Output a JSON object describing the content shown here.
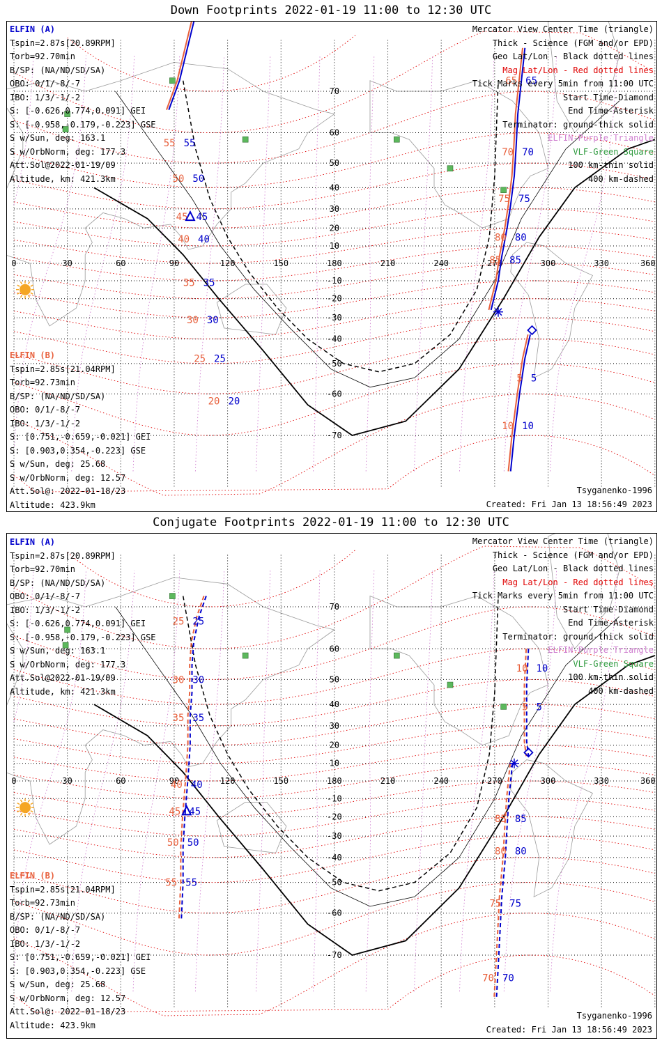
{
  "panels": [
    {
      "id": "down",
      "title": "Down Footprints 2022-01-19 11:00 to 12:30 UTC",
      "elfin_a": {
        "header": "ELFIN (A)",
        "lines": [
          "Tspin=2.87s[20.89RPM]",
          "Torb=92.70min",
          "B/SP: (NA/ND/SD/SA)",
          "OBO: 0/1/-8/-7",
          "IBO: 1/3/-1/-2",
          "S: [-0.626,0.774,0.091] GEI",
          "S: [-0.958,-0.179,-0.223] GSE",
          "S w/Sun, deg: 163.1",
          "S w/OrbNorm, deg: 177.3",
          "Att.Sol@2022-01-19/09",
          "Altitude, km: 421.3km"
        ]
      },
      "elfin_b": {
        "header": "ELFIN (B)",
        "lines": [
          "Tspin=2.85s[21.04RPM]",
          "Torb=92.73min",
          "B/SP: (NA/ND/SD/SA)",
          "OBO: 0/1/-8/-7",
          "IBO: 1/3/-1/-2",
          "S: [0.751,-0.659,-0.021] GEI",
          "S: [0.903,0.354,-0.223] GSE",
          "S w/Sun, deg: 25.68",
          "S w/OrbNorm, deg: 12.57",
          "Att.Sol@: 2022-01-18/23",
          "Altitude: 423.9km"
        ]
      },
      "trace_a": [
        [
          66,
          87
        ],
        [
          72,
          93
        ],
        [
          80,
          101
        ],
        [
          86,
          108
        ],
        [
          90,
          113
        ],
        [
          96,
          120
        ],
        [
          102,
          127
        ],
        [
          105,
          132
        ],
        [
          109,
          138
        ],
        [
          112,
          143
        ]
      ],
      "trace_b": [
        [
          -26,
          268
        ],
        [
          -10,
          272
        ],
        [
          4,
          274
        ],
        [
          20,
          277
        ],
        [
          32,
          279
        ],
        [
          45,
          281
        ],
        [
          55,
          282
        ],
        [
          65,
          283
        ],
        [
          77,
          287
        ]
      ],
      "labels_a": [
        {
          "t": "55",
          "lat": 57,
          "lon": 93
        },
        {
          "t": "50",
          "lat": 44,
          "lon": 98
        },
        {
          "t": "45",
          "lat": 26,
          "lon": 100
        },
        {
          "t": "40",
          "lat": 14,
          "lon": 101
        },
        {
          "t": "35",
          "lat": -11,
          "lon": 104
        },
        {
          "t": "30",
          "lat": -31,
          "lon": 106
        },
        {
          "t": "25",
          "lat": -48,
          "lon": 110
        },
        {
          "t": "20",
          "lat": -62,
          "lon": 118
        }
      ],
      "labels_b": [
        {
          "t": "65",
          "lat": 72,
          "lon": 285
        },
        {
          "t": "70",
          "lat": 54,
          "lon": 283
        },
        {
          "t": "75",
          "lat": 35,
          "lon": 281
        },
        {
          "t": "80",
          "lat": 15,
          "lon": 279
        },
        {
          "t": "85",
          "lat": 2,
          "lon": 276
        },
        {
          "t": "5",
          "lat": -55,
          "lon": 288
        },
        {
          "t": "10",
          "lat": -68,
          "lon": 283
        }
      ],
      "labels_b_second": [
        {
          "t": "5",
          "lat": -55,
          "lon": 288
        },
        {
          "t": "10",
          "lat": -68,
          "lon": 283
        }
      ],
      "b_second_trace": [
        [
          -38,
          290
        ],
        [
          -48,
          287
        ],
        [
          -60,
          284
        ],
        [
          -70,
          281
        ],
        [
          -76,
          279
        ]
      ],
      "start_a": [
        26,
        99
      ],
      "end_b": [
        -27,
        272
      ],
      "diamond_b": [
        -36,
        291
      ],
      "terminator_dashed": [
        [
          72,
          95
        ],
        [
          55,
          102
        ],
        [
          35,
          110
        ],
        [
          15,
          120
        ],
        [
          -5,
          132
        ],
        [
          -25,
          148
        ],
        [
          -40,
          165
        ],
        [
          -50,
          185
        ],
        [
          -53,
          205
        ],
        [
          -50,
          225
        ],
        [
          -38,
          245
        ],
        [
          -15,
          260
        ],
        [
          15,
          267
        ],
        [
          45,
          270
        ],
        [
          72,
          272
        ]
      ],
      "terminator_thin": [
        [
          70,
          57
        ],
        [
          55,
          80
        ],
        [
          35,
          100
        ],
        [
          10,
          116
        ],
        [
          -15,
          135
        ],
        [
          -35,
          155
        ],
        [
          -52,
          178
        ],
        [
          -58,
          200
        ],
        [
          -55,
          225
        ],
        [
          -40,
          250
        ],
        [
          -10,
          270
        ],
        [
          25,
          285
        ],
        [
          55,
          310
        ],
        [
          68,
          340
        ]
      ],
      "terminator_thick": [
        [
          40,
          45
        ],
        [
          25,
          75
        ],
        [
          5,
          95
        ],
        [
          -20,
          115
        ],
        [
          -45,
          140
        ],
        [
          -63,
          165
        ],
        [
          -70,
          190
        ],
        [
          -67,
          220
        ],
        [
          -52,
          250
        ],
        [
          -20,
          275
        ],
        [
          15,
          295
        ],
        [
          40,
          315
        ],
        [
          55,
          345
        ],
        [
          58,
          360
        ]
      ],
      "footer_left": "",
      "footer_right_model": "Tsyganenko-1996",
      "footer_right_created": "Created: Fri Jan 13 18:56:49 2023"
    },
    {
      "id": "conj",
      "title": "Conjugate Footprints 2022-01-19 11:00 to 12:30 UTC",
      "elfin_a": {
        "header": "ELFIN (A)",
        "lines": [
          "Tspin=2.87s[20.89RPM]",
          "Torb=92.70min",
          "B/SP: (NA/ND/SD/SA)",
          "OBO: 0/1/-8/-7",
          "IBO: 1/3/-1/-2",
          "S: [-0.626,0.774,0.091] GEI",
          "S: [-0.958,-0.179,-0.223] GSE",
          "S w/Sun, deg: 163.1",
          "S w/OrbNorm, deg: 177.3",
          "Att.Sol@2022-01-19/09",
          "Altitude, km: 421.3km"
        ]
      },
      "elfin_b": {
        "header": "ELFIN (B)",
        "lines": [
          "Tspin=2.85s[21.04RPM]",
          "Torb=92.73min",
          "B/SP: (NA/ND/SD/SA)",
          "OBO: 0/1/-8/-7",
          "IBO: 1/3/-1/-2",
          "S: [0.751,-0.659,-0.021] GEI",
          "S: [0.903,0.354,-0.223] GSE",
          "S w/Sun, deg: 25.68",
          "S w/OrbNorm, deg: 12.57",
          "Att.Sol@: 2022-01-18/23",
          "Altitude: 423.9km"
        ]
      },
      "trace_a": [
        [
          72,
          108
        ],
        [
          68,
          104
        ],
        [
          62,
          101
        ],
        [
          55,
          100
        ],
        [
          45,
          100
        ],
        [
          35,
          99
        ],
        [
          20,
          99
        ],
        [
          5,
          98
        ],
        [
          -8,
          97
        ],
        [
          -20,
          96
        ],
        [
          -35,
          95
        ],
        [
          -50,
          95
        ],
        [
          -62,
          94
        ]
      ],
      "trace_b": [
        [
          60,
          289
        ],
        [
          48,
          288
        ],
        [
          35,
          288
        ],
        [
          22,
          288
        ],
        [
          14,
          289
        ]
      ],
      "b_second_trace": [
        [
          10,
          280
        ],
        [
          0,
          279
        ],
        [
          -10,
          278
        ],
        [
          -25,
          277
        ],
        [
          -40,
          276
        ],
        [
          -55,
          274
        ],
        [
          -65,
          273
        ],
        [
          -72,
          272
        ],
        [
          -77,
          271
        ]
      ],
      "labels_a": [
        {
          "t": "25",
          "lat": 67,
          "lon": 98
        },
        {
          "t": "30",
          "lat": 50,
          "lon": 98
        },
        {
          "t": "35",
          "lat": 34,
          "lon": 98
        },
        {
          "t": "40",
          "lat": -2,
          "lon": 97
        },
        {
          "t": "45",
          "lat": -17,
          "lon": 96
        },
        {
          "t": "50",
          "lat": -33,
          "lon": 95
        },
        {
          "t": "55",
          "lat": -50,
          "lon": 94
        }
      ],
      "labels_b": [
        {
          "t": "10",
          "lat": 54,
          "lon": 291
        },
        {
          "t": "5",
          "lat": 39,
          "lon": 291
        }
      ],
      "labels_b_second": [
        {
          "t": "85",
          "lat": -21,
          "lon": 279
        },
        {
          "t": "80",
          "lat": -37,
          "lon": 279
        },
        {
          "t": "75",
          "lat": -57,
          "lon": 276
        },
        {
          "t": "70",
          "lat": -74,
          "lon": 272
        }
      ],
      "start_a": [
        -17,
        97
      ],
      "end_b": [
        10,
        281
      ],
      "diamond_b": [
        16,
        289
      ],
      "terminator_dashed": [
        [
          72,
          95
        ],
        [
          55,
          102
        ],
        [
          35,
          110
        ],
        [
          15,
          120
        ],
        [
          -5,
          132
        ],
        [
          -25,
          148
        ],
        [
          -40,
          165
        ],
        [
          -50,
          185
        ],
        [
          -53,
          205
        ],
        [
          -50,
          225
        ],
        [
          -38,
          245
        ],
        [
          -15,
          260
        ],
        [
          15,
          267
        ],
        [
          45,
          270
        ],
        [
          72,
          272
        ]
      ],
      "terminator_thin": [
        [
          70,
          57
        ],
        [
          55,
          80
        ],
        [
          35,
          100
        ],
        [
          10,
          116
        ],
        [
          -15,
          135
        ],
        [
          -35,
          155
        ],
        [
          -52,
          178
        ],
        [
          -58,
          200
        ],
        [
          -55,
          225
        ],
        [
          -40,
          250
        ],
        [
          -10,
          270
        ],
        [
          25,
          285
        ],
        [
          55,
          310
        ],
        [
          68,
          340
        ]
      ],
      "terminator_thick": [
        [
          40,
          45
        ],
        [
          25,
          75
        ],
        [
          5,
          95
        ],
        [
          -20,
          115
        ],
        [
          -45,
          140
        ],
        [
          -63,
          165
        ],
        [
          -70,
          190
        ],
        [
          -67,
          220
        ],
        [
          -52,
          250
        ],
        [
          -20,
          275
        ],
        [
          15,
          295
        ],
        [
          40,
          315
        ],
        [
          55,
          345
        ],
        [
          58,
          360
        ]
      ],
      "footer_left": "",
      "footer_right_model": "Tsyganenko-1996",
      "footer_right_created": "Created: Fri Jan 13 18:56:49 2023"
    }
  ],
  "legend": {
    "lines": [
      "Mercator View Center Time (triangle)",
      "Thick - Science (FGM and/or EPD)",
      "Geo Lat/Lon - Black dotted lines",
      "Mag Lat/Lon - Red dotted lines",
      "Tick Marks every 5min from 11:00 UTC",
      "Start Time-Diamond",
      "End Time-Asterisk",
      "Terminator: ground-thick solid",
      "ELFIN-Purple Triangle",
      "VLF-Green Square",
      "100 km-thin solid",
      "400 km-dashed"
    ]
  },
  "lon_ticks": [
    "0",
    "30",
    "60",
    "90",
    "120",
    "150",
    "180",
    "210",
    "240",
    "270",
    "300",
    "330",
    "360"
  ],
  "lat_ticks": [
    {
      "t": "70",
      "lat": 70
    },
    {
      "t": "60",
      "lat": 60
    },
    {
      "t": "50",
      "lat": 50
    },
    {
      "t": "40",
      "lat": 40
    },
    {
      "t": "30",
      "lat": 30
    },
    {
      "t": "20",
      "lat": 20
    },
    {
      "t": "10",
      "lat": 10
    },
    {
      "t": "-10",
      "lat": -10
    },
    {
      "t": "-20",
      "lat": -20
    },
    {
      "t": "-30",
      "lat": -30
    },
    {
      "t": "-40",
      "lat": -40
    },
    {
      "t": "-50",
      "lat": -50
    },
    {
      "t": "-60",
      "lat": -60
    },
    {
      "t": "-70",
      "lat": -70
    }
  ],
  "vlf_sites": [
    [
      72,
      89
    ],
    [
      65,
      30
    ],
    [
      61,
      29
    ],
    [
      58,
      130
    ],
    [
      58,
      215
    ],
    [
      48,
      245
    ],
    [
      39,
      275
    ]
  ],
  "colors": {
    "elfin_a": "#0000cc",
    "elfin_b": "#e8603c",
    "mag_grid": "#e00000",
    "geo_grid": "#000000",
    "vlf": "#5cb85c",
    "sun": "#f5a623",
    "coast": "#9a9a9a",
    "purple": "#d080d0"
  }
}
